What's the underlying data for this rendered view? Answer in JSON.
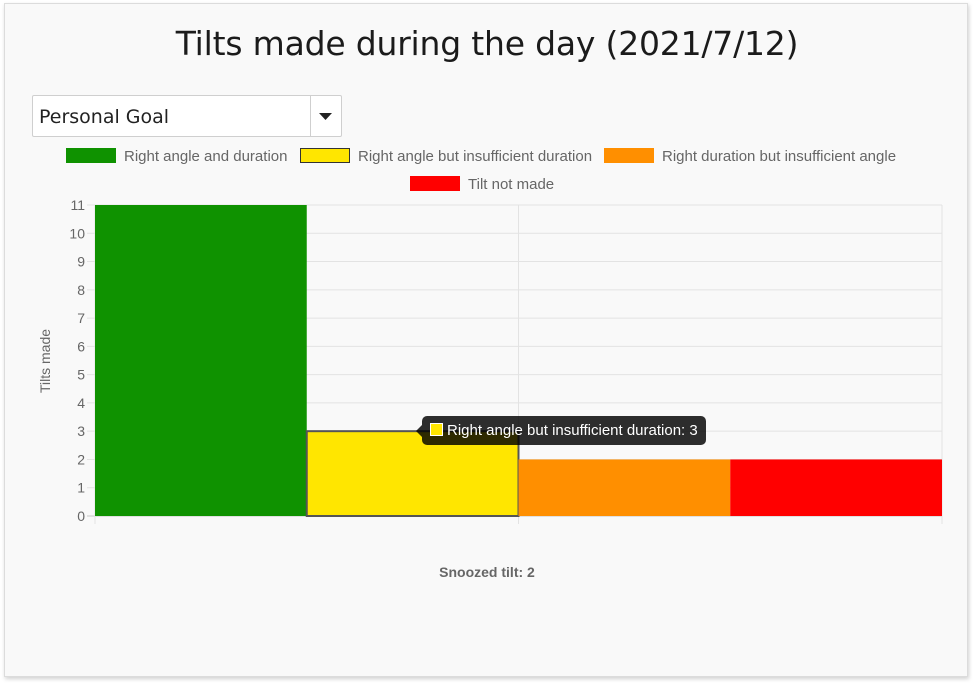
{
  "page": {
    "title": "Tilts made during the day (2021/7/12)",
    "select_value": "Personal Goal",
    "footer_label": "Snoozed tilt: 2"
  },
  "chart_data": {
    "type": "bar",
    "xlabel": "",
    "ylabel": "Tilts made",
    "ylim": [
      0,
      11
    ],
    "yticks": [
      0,
      1,
      2,
      3,
      4,
      5,
      6,
      7,
      8,
      9,
      10,
      11
    ],
    "grid": true,
    "legend_position": "top",
    "series": [
      {
        "name": "Right angle and duration",
        "value": 11,
        "color": "#0f9200"
      },
      {
        "name": "Right angle but insufficient duration",
        "value": 3,
        "color": "#ffe600"
      },
      {
        "name": "Right duration but insufficient angle",
        "value": 2,
        "color": "#ff8f00"
      },
      {
        "name": "Tilt not made",
        "value": 2,
        "color": "#ff0000"
      }
    ],
    "tooltip": {
      "series": "Right angle but insufficient duration",
      "text": "Right angle but insufficient duration: 3"
    }
  }
}
